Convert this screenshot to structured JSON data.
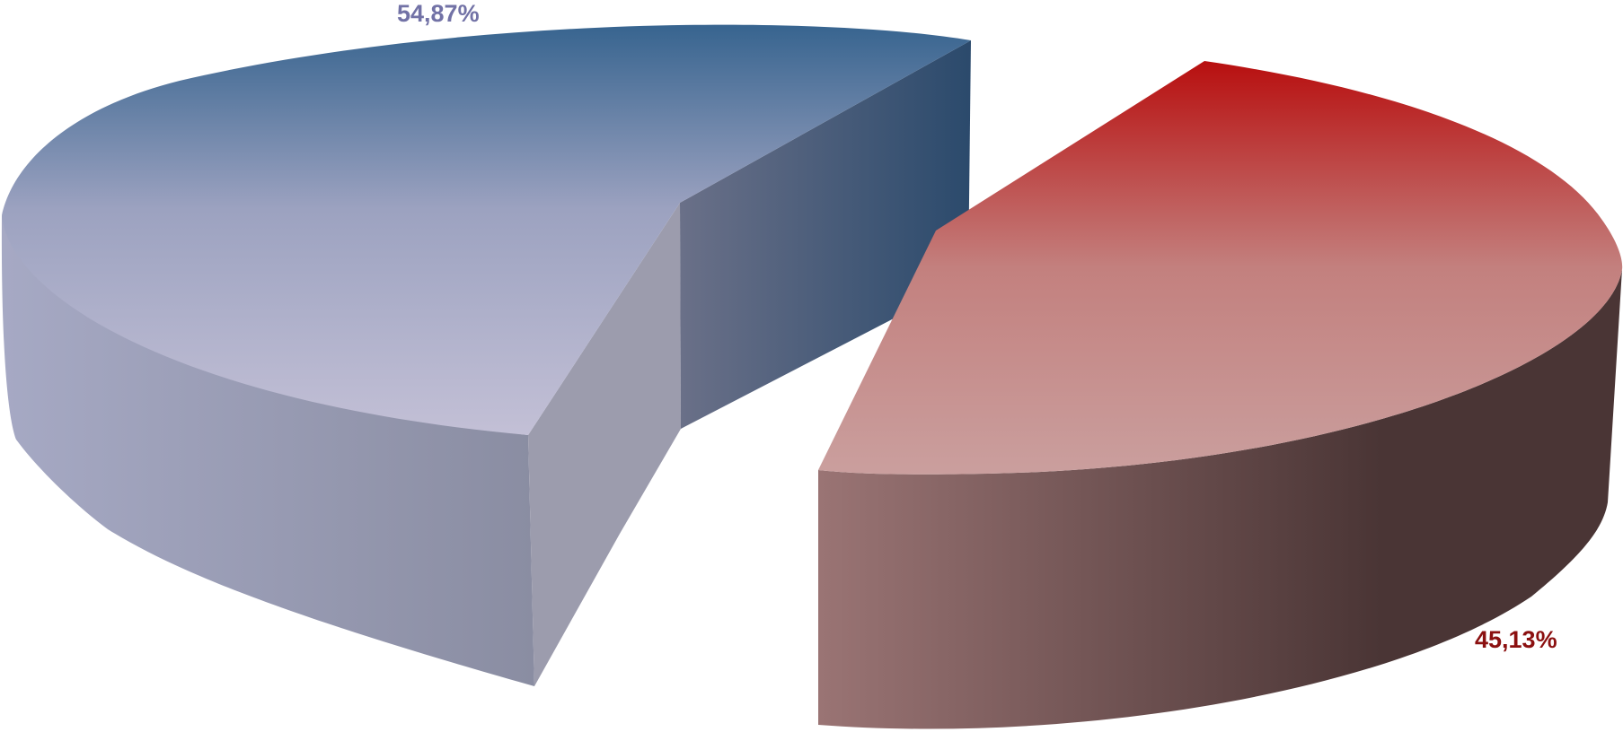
{
  "chart_data": {
    "type": "pie",
    "style": "3d-exploded",
    "title": "",
    "slices": [
      {
        "label": "54,87%",
        "value": 54.87,
        "top_colors": [
          "#37648f",
          "#9ca2c0",
          "#c3c0d6"
        ],
        "side_colors": [
          "#a6a9c4",
          "#8a8da2"
        ],
        "cut_colors": [
          "#6a7088",
          "#2b4a6c"
        ],
        "label_color": "#7272a6"
      },
      {
        "label": "45,13%",
        "value": 45.13,
        "top_colors": [
          "#b80f0f",
          "#c3807e",
          "#ca9f9e"
        ],
        "side_colors": [
          "#9a7474",
          "#4a3535"
        ],
        "cut_colors": [
          "#8a6a6a",
          "#4a3535"
        ],
        "label_color": "#8b1010"
      }
    ],
    "legend": "none"
  }
}
